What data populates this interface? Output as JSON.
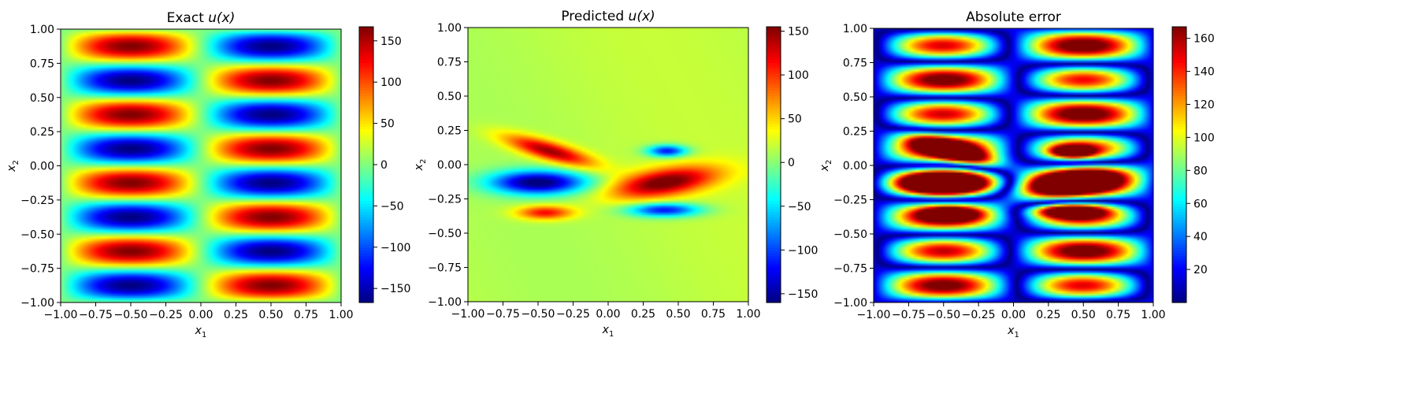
{
  "figure": {
    "layout": "1 row x 3 panels"
  },
  "chart_data": [
    {
      "type": "heatmap",
      "title": "Exact u(x)",
      "title_parts": {
        "text": "Exact ",
        "math": "u(x)"
      },
      "xlabel": "x1",
      "ylabel": "x2",
      "xlabel_parts": {
        "base": "x",
        "sub": "1"
      },
      "ylabel_parts": {
        "base": "x",
        "sub": "2"
      },
      "xlim": [
        -1.0,
        1.0
      ],
      "ylim": [
        -1.0,
        1.0
      ],
      "xticks": [
        "-1.00",
        "-0.75",
        "-0.50",
        "-0.25",
        "0.00",
        "0.25",
        "0.50",
        "0.75",
        "1.00"
      ],
      "yticks": [
        "-1.00",
        "-0.75",
        "-0.50",
        "-0.25",
        "0.00",
        "0.25",
        "0.50",
        "0.75",
        "1.00"
      ],
      "colormap": "jet",
      "clim": [
        -167,
        167
      ],
      "colorbar_ticks": [
        "-150",
        "-100",
        "-50",
        "0",
        "50",
        "100",
        "150"
      ],
      "field": {
        "form": "A*sin(pi*x1)*sin(4*pi*x2)",
        "amplitude": 167,
        "kx": 1,
        "ky": 4
      },
      "grid": false
    },
    {
      "type": "heatmap",
      "title": "Predicted u(x)",
      "title_parts": {
        "text": "Predicted ",
        "math": "u(x)"
      },
      "xlabel": "x1",
      "ylabel": "x2",
      "xlabel_parts": {
        "base": "x",
        "sub": "1"
      },
      "ylabel_parts": {
        "base": "x",
        "sub": "2"
      },
      "xlim": [
        -1.0,
        1.0
      ],
      "ylim": [
        -1.0,
        1.0
      ],
      "xticks": [
        "-1.00",
        "-0.75",
        "-0.50",
        "-0.25",
        "0.00",
        "0.25",
        "0.50",
        "0.75",
        "1.00"
      ],
      "yticks": [
        "-1.00",
        "-0.75",
        "-0.50",
        "-0.25",
        "0.00",
        "0.25",
        "0.50",
        "0.75",
        "1.00"
      ],
      "colormap": "jet",
      "clim": [
        -160,
        155
      ],
      "colorbar_ticks": [
        "-150",
        "-100",
        "-50",
        "0",
        "50",
        "100",
        "150"
      ],
      "background_value": 30,
      "blobs": [
        {
          "x": -0.42,
          "y": 0.1,
          "sx": 0.22,
          "sy": 0.05,
          "value": 150,
          "tilt": -0.28
        },
        {
          "x": -0.5,
          "y": -0.13,
          "sx": 0.24,
          "sy": 0.06,
          "value": -165
        },
        {
          "x": -0.45,
          "y": -0.35,
          "sx": 0.14,
          "sy": 0.035,
          "value": 120
        },
        {
          "x": 0.4,
          "y": -0.13,
          "sx": 0.26,
          "sy": 0.07,
          "value": 165,
          "tilt": 0.15
        },
        {
          "x": 0.42,
          "y": 0.1,
          "sx": 0.1,
          "sy": 0.03,
          "value": -120
        },
        {
          "x": 0.4,
          "y": -0.33,
          "sx": 0.18,
          "sy": 0.035,
          "value": -120
        }
      ],
      "grid": false
    },
    {
      "type": "heatmap",
      "title": "Absolute error",
      "xlabel": "x1",
      "ylabel": "x2",
      "xlabel_parts": {
        "base": "x",
        "sub": "1"
      },
      "ylabel_parts": {
        "base": "x",
        "sub": "2"
      },
      "xlim": [
        -1.0,
        1.0
      ],
      "ylim": [
        -1.0,
        1.0
      ],
      "xticks": [
        "-1.00",
        "-0.75",
        "-0.50",
        "-0.25",
        "0.00",
        "0.25",
        "0.50",
        "0.75",
        "1.00"
      ],
      "yticks": [
        "-1.00",
        "-0.75",
        "-0.50",
        "-0.25",
        "0.00",
        "0.25",
        "0.50",
        "0.75",
        "1.00"
      ],
      "colormap": "jet",
      "clim": [
        0,
        167
      ],
      "colorbar_ticks": [
        "20",
        "40",
        "60",
        "80",
        "100",
        "120",
        "140",
        "160"
      ],
      "field": {
        "form": "|exact - predicted|"
      },
      "grid": false
    }
  ]
}
